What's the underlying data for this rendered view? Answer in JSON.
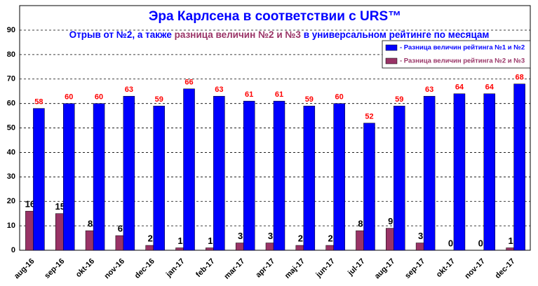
{
  "chart_data": {
    "type": "bar",
    "title": "Эра Карлсена в соответствии с URS™",
    "subtitle": [
      "Отрыв от №2, а также ",
      "разница величин №2 и №3",
      " в универсальном рейтинге по месяцам"
    ],
    "categories": [
      "aug-16",
      "sep-16",
      "okt-16",
      "nov-16",
      "dec-16",
      "jan-17",
      "feb-17",
      "mar-17",
      "apr-17",
      "maj-17",
      "jun-17",
      "jul-17",
      "aug-17",
      "sep-17",
      "okt-17",
      "nov-17",
      "dec-17"
    ],
    "series": [
      {
        "name": "- Разница величин рейтинга №1 и №2",
        "color": "#0000ff",
        "label_color": "#ff0000",
        "values": [
          58,
          60,
          60,
          63,
          59,
          66,
          63,
          61,
          61,
          59,
          60,
          52,
          59,
          63,
          64,
          64,
          68
        ]
      },
      {
        "name": "- Разница величин рейтинга №2 и №3",
        "color": "#993366",
        "label_color": "#000000",
        "values": [
          16,
          15,
          8,
          6,
          2,
          1,
          1,
          3,
          3,
          2,
          2,
          8,
          9,
          3,
          0,
          0,
          1
        ]
      }
    ],
    "ylim": [
      0,
      90
    ],
    "yticks": [
      0,
      10,
      20,
      30,
      40,
      50,
      60,
      70,
      80,
      90
    ],
    "grid": true,
    "legend": "top-right"
  }
}
